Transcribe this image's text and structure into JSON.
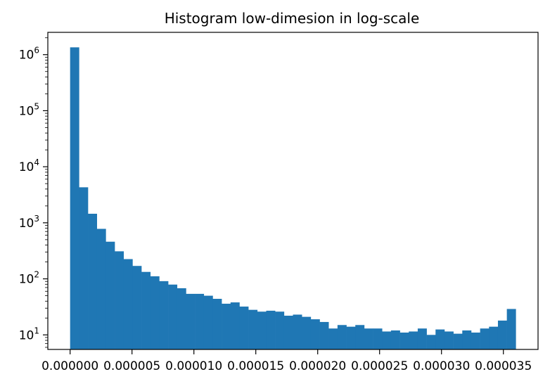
{
  "chart_data": {
    "type": "bar",
    "title": "Histogram low-dimesion in log-scale",
    "xlabel": "",
    "ylabel": "",
    "y_scale": "log",
    "xlim": [
      -1.8e-06,
      3.78e-05
    ],
    "ylim": [
      5.5,
      2500000
    ],
    "bin_start": 0.0,
    "bin_width": 7.2e-07,
    "values": [
      1350000,
      4300,
      1450,
      780,
      460,
      310,
      225,
      170,
      133,
      111,
      91,
      79,
      68,
      54,
      54,
      50,
      44,
      36,
      38,
      32,
      28,
      26,
      27,
      26,
      22,
      23,
      21,
      19,
      17,
      13,
      15,
      14,
      15,
      13,
      13,
      11.5,
      12,
      11,
      11.5,
      13,
      10,
      12.5,
      11.5,
      10.5,
      12,
      11,
      13,
      14,
      18,
      29
    ],
    "x_ticks": [
      {
        "value": 0.0,
        "label": "0.000000"
      },
      {
        "value": 5e-06,
        "label": "0.000005"
      },
      {
        "value": 1e-05,
        "label": "0.000010"
      },
      {
        "value": 1.5e-05,
        "label": "0.000015"
      },
      {
        "value": 2e-05,
        "label": "0.000020"
      },
      {
        "value": 2.5e-05,
        "label": "0.000025"
      },
      {
        "value": 3e-05,
        "label": "0.000030"
      },
      {
        "value": 3.5e-05,
        "label": "0.000035"
      }
    ],
    "y_ticks": [
      {
        "value": 10,
        "base": "10",
        "exp": "1"
      },
      {
        "value": 100,
        "base": "10",
        "exp": "2"
      },
      {
        "value": 1000,
        "base": "10",
        "exp": "3"
      },
      {
        "value": 10000,
        "base": "10",
        "exp": "4"
      },
      {
        "value": 100000,
        "base": "10",
        "exp": "5"
      },
      {
        "value": 1000000,
        "base": "10",
        "exp": "6"
      }
    ],
    "bar_color": "#1f77b4"
  }
}
